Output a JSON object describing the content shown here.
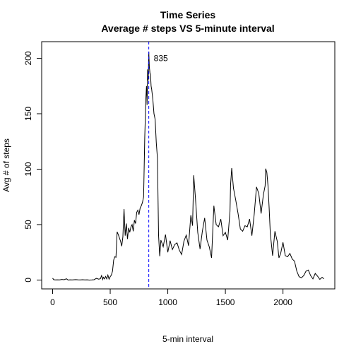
{
  "chart_data": {
    "type": "line",
    "title": "Time Series",
    "subtitle": "Average # steps VS 5-minute interval",
    "xlabel": "5-min interval",
    "ylabel": "Avg # of steps",
    "xlim": [
      -95,
      2450
    ],
    "ylim": [
      -8,
      215
    ],
    "x_ticks": [
      0,
      500,
      1000,
      1500,
      2000
    ],
    "y_ticks": [
      0,
      50,
      100,
      150,
      200
    ],
    "line_color": "#000000",
    "grid": false,
    "series": [
      {
        "x": [
          0,
          10,
          25,
          40,
          60,
          80,
          100,
          120,
          135,
          150,
          170,
          200,
          220,
          240,
          260,
          280,
          300,
          320,
          340,
          360,
          380,
          400,
          415,
          425,
          435,
          440,
          450,
          460,
          470,
          480,
          490,
          500,
          510,
          520,
          530,
          540,
          550,
          560,
          570,
          580,
          590,
          600,
          610,
          620,
          630,
          640,
          650,
          660,
          670,
          680,
          690,
          700,
          710,
          720,
          730,
          740,
          750,
          760,
          770,
          780,
          790,
          800,
          810,
          815,
          820,
          825,
          830,
          835,
          840,
          845,
          850,
          855,
          860,
          870,
          880,
          890,
          900,
          910,
          920,
          930,
          940,
          960,
          980,
          1000,
          1020,
          1040,
          1060,
          1080,
          1100,
          1120,
          1140,
          1160,
          1180,
          1200,
          1215,
          1225,
          1240,
          1260,
          1280,
          1300,
          1320,
          1340,
          1360,
          1380,
          1400,
          1420,
          1440,
          1460,
          1480,
          1500,
          1520,
          1540,
          1545,
          1555,
          1570,
          1590,
          1610,
          1630,
          1650,
          1670,
          1690,
          1710,
          1730,
          1750,
          1770,
          1790,
          1810,
          1830,
          1845,
          1850,
          1860,
          1870,
          1880,
          1890,
          1910,
          1930,
          1950,
          1965,
          1980,
          2000,
          2020,
          2040,
          2060,
          2080,
          2100,
          2120,
          2140,
          2160,
          2180,
          2200,
          2220,
          2240,
          2260,
          2280,
          2300,
          2320,
          2340,
          2355
        ],
        "y": [
          1.7,
          0.3,
          0.1,
          0.2,
          0.1,
          0.5,
          0.3,
          1.1,
          0.0,
          0.2,
          0.1,
          0.4,
          0.2,
          0.1,
          0.3,
          0.1,
          0.2,
          0.0,
          0.1,
          0.3,
          1.5,
          0.8,
          1.2,
          4.0,
          0.5,
          2.5,
          1.0,
          3.2,
          1.0,
          4.5,
          0.8,
          3.0,
          4.5,
          8.0,
          18.0,
          21.0,
          20.5,
          43.5,
          41.0,
          38.0,
          35.0,
          30.5,
          39.0,
          64.0,
          40.0,
          51.0,
          37.0,
          47.0,
          43.0,
          48.0,
          50.0,
          44.0,
          54.0,
          51.0,
          61.0,
          63.0,
          59.0,
          65.0,
          67.0,
          70.0,
          75.0,
          129.0,
          165.0,
          175.0,
          158.0,
          190.0,
          180.0,
          206.0,
          192.0,
          187.0,
          185.0,
          175.0,
          172.0,
          163.0,
          150.0,
          145.0,
          124.0,
          110.0,
          40.0,
          21.5,
          36.0,
          30.0,
          41.0,
          25.0,
          35.5,
          27.5,
          32.0,
          33.5,
          27.0,
          23.0,
          35.0,
          40.5,
          31.0,
          58.5,
          49.0,
          94.5,
          74.0,
          43.0,
          28.0,
          44.0,
          56.0,
          36.0,
          30.0,
          20.0,
          67.0,
          50.0,
          48.0,
          55.0,
          40.0,
          43.0,
          36.0,
          62.0,
          86.0,
          101.0,
          83.0,
          72.0,
          60.0,
          46.0,
          44.0,
          49.0,
          48.0,
          55.0,
          40.0,
          59.0,
          84.0,
          78.0,
          60.0,
          77.0,
          85.0,
          100.5,
          97.0,
          85.0,
          65.0,
          42.0,
          22.0,
          44.0,
          35.0,
          20.0,
          24.0,
          34.0,
          22.0,
          21.0,
          24.0,
          19.0,
          17.0,
          8.0,
          3.0,
          2.0,
          4.0,
          8.0,
          9.0,
          4.0,
          1.0,
          6.0,
          3.5,
          0.6,
          2.5,
          1.1
        ]
      }
    ],
    "vline": {
      "x": 835,
      "color": "#0000ff",
      "style": "dashed"
    },
    "annotation": {
      "text": "835",
      "x": 835,
      "y": 200
    }
  }
}
